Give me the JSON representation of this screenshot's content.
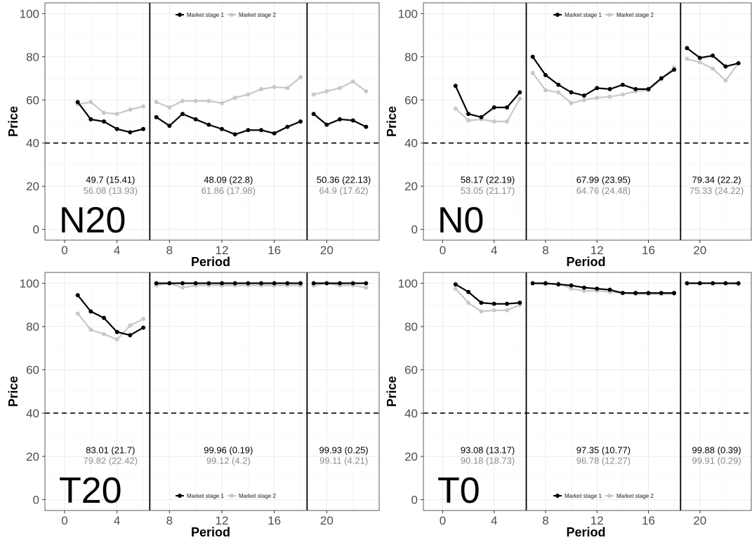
{
  "chart_data": [
    {
      "type": "line",
      "panel_label": "N20",
      "xlabel": "Period",
      "ylabel": "Price",
      "xlim": [
        -1.5,
        24
      ],
      "ylim": [
        -5,
        105
      ],
      "xticks": [
        0,
        4,
        8,
        12,
        16,
        20
      ],
      "yticks": [
        0,
        20,
        40,
        60,
        80,
        100
      ],
      "reference_line_y": 40,
      "dividers_x": [
        6.5,
        18.5
      ],
      "legend_position": "top",
      "series": [
        {
          "name": "Market stage 1",
          "color": "#000000",
          "segments": [
            {
              "x": [
                1,
                2,
                3,
                4,
                5,
                6
              ],
              "y": [
                59,
                51,
                50,
                46.5,
                45,
                46.5
              ]
            },
            {
              "x": [
                7,
                8,
                9,
                10,
                11,
                12,
                13,
                14,
                15,
                16,
                17,
                18
              ],
              "y": [
                52,
                48,
                53.5,
                51,
                48.5,
                46.5,
                44,
                46,
                46,
                44.5,
                47.5,
                50
              ]
            },
            {
              "x": [
                19,
                20,
                21,
                22,
                23
              ],
              "y": [
                53.5,
                48.5,
                51,
                50.5,
                47.5
              ]
            }
          ]
        },
        {
          "name": "Market stage 2",
          "color": "#c8c8c8",
          "segments": [
            {
              "x": [
                1,
                2,
                3,
                4,
                5,
                6
              ],
              "y": [
                58,
                59,
                54,
                53.5,
                55.5,
                57
              ]
            },
            {
              "x": [
                7,
                8,
                9,
                10,
                11,
                12,
                13,
                14,
                15,
                16,
                17,
                18
              ],
              "y": [
                59,
                56.5,
                59.5,
                59.5,
                59.5,
                58.5,
                61,
                62.5,
                65,
                66,
                65.5,
                70.5
              ]
            },
            {
              "x": [
                19,
                20,
                21,
                22,
                23
              ],
              "y": [
                62.5,
                64,
                65.5,
                68.5,
                64
              ]
            }
          ]
        }
      ],
      "annotations": [
        {
          "x": 3.5,
          "stage1": "49.7 (15.41)",
          "stage2": "56.08 (13.93)"
        },
        {
          "x": 12.5,
          "stage1": "48.09 (22.8)",
          "stage2": "61.86 (17.98)"
        },
        {
          "x": 21.3,
          "stage1": "50.36 (22.13)",
          "stage2": "64.9 (17.62)"
        }
      ]
    },
    {
      "type": "line",
      "panel_label": "N0",
      "xlabel": "Period",
      "ylabel": "Price",
      "xlim": [
        -1.5,
        24
      ],
      "ylim": [
        -5,
        105
      ],
      "xticks": [
        0,
        4,
        8,
        12,
        16,
        20
      ],
      "yticks": [
        0,
        20,
        40,
        60,
        80,
        100
      ],
      "reference_line_y": 40,
      "dividers_x": [
        6.5,
        18.5
      ],
      "legend_position": "top",
      "series": [
        {
          "name": "Market stage 1",
          "color": "#000000",
          "segments": [
            {
              "x": [
                1,
                2,
                3,
                4,
                5,
                6
              ],
              "y": [
                66.5,
                53.5,
                52,
                56.5,
                56.5,
                63.5
              ]
            },
            {
              "x": [
                7,
                8,
                9,
                10,
                11,
                12,
                13,
                14,
                15,
                16,
                17,
                18
              ],
              "y": [
                80,
                71.5,
                67,
                63.5,
                62,
                65.5,
                65,
                67,
                65,
                65,
                70,
                74
              ]
            },
            {
              "x": [
                19,
                20,
                21,
                22,
                23
              ],
              "y": [
                84,
                79.5,
                80.5,
                75.5,
                77
              ]
            }
          ]
        },
        {
          "name": "Market stage 2",
          "color": "#c8c8c8",
          "segments": [
            {
              "x": [
                1,
                2,
                3,
                4,
                5,
                6
              ],
              "y": [
                56,
                50.5,
                51,
                50,
                50,
                60.5
              ]
            },
            {
              "x": [
                7,
                8,
                9,
                10,
                11,
                12,
                13,
                14,
                15,
                16,
                17,
                18
              ],
              "y": [
                72.5,
                64.5,
                63.5,
                58.5,
                60,
                61,
                61.5,
                62.5,
                64,
                64.5,
                69.5,
                75
              ]
            },
            {
              "x": [
                19,
                20,
                21,
                22,
                23
              ],
              "y": [
                79,
                77.5,
                74.5,
                69,
                77
              ]
            }
          ]
        }
      ],
      "annotations": [
        {
          "x": 3.5,
          "stage1": "58.17 (22.19)",
          "stage2": "53.05 (21.17)"
        },
        {
          "x": 12.5,
          "stage1": "67.99 (23.95)",
          "stage2": "64.76 (24.48)"
        },
        {
          "x": 21.3,
          "stage1": "79.34 (22.2)",
          "stage2": "75.33 (24.22)"
        }
      ]
    },
    {
      "type": "line",
      "panel_label": "T20",
      "xlabel": "Period",
      "ylabel": "Price",
      "xlim": [
        -1.5,
        24
      ],
      "ylim": [
        -5,
        105
      ],
      "xticks": [
        0,
        4,
        8,
        12,
        16,
        20
      ],
      "yticks": [
        0,
        20,
        40,
        60,
        80,
        100
      ],
      "reference_line_y": 40,
      "dividers_x": [
        6.5,
        18.5
      ],
      "legend_position": "bottom",
      "series": [
        {
          "name": "Market stage 1",
          "color": "#000000",
          "segments": [
            {
              "x": [
                1,
                2,
                3,
                4,
                5,
                6
              ],
              "y": [
                94.5,
                87,
                84,
                77.5,
                76,
                79.5
              ]
            },
            {
              "x": [
                7,
                8,
                9,
                10,
                11,
                12,
                13,
                14,
                15,
                16,
                17,
                18
              ],
              "y": [
                100,
                100,
                100,
                100,
                100,
                100,
                100,
                100,
                100,
                100,
                100,
                100
              ]
            },
            {
              "x": [
                19,
                20,
                21,
                22,
                23
              ],
              "y": [
                100,
                100,
                100,
                100,
                100
              ]
            }
          ]
        },
        {
          "name": "Market stage 2",
          "color": "#c8c8c8",
          "segments": [
            {
              "x": [
                1,
                2,
                3,
                4,
                5,
                6
              ],
              "y": [
                86,
                78.5,
                76.5,
                74,
                80.5,
                83.5
              ]
            },
            {
              "x": [
                7,
                8,
                9,
                10,
                11,
                12,
                13,
                14,
                15,
                16,
                17,
                18
              ],
              "y": [
                99,
                100,
                98,
                99,
                99,
                99,
                99,
                99,
                99,
                99,
                99,
                99
              ]
            },
            {
              "x": [
                19,
                20,
                21,
                22,
                23
              ],
              "y": [
                99,
                100,
                99,
                99,
                98
              ]
            }
          ]
        }
      ],
      "annotations": [
        {
          "x": 3.5,
          "stage1": "83.01 (21.7)",
          "stage2": "79.82 (22.42)"
        },
        {
          "x": 12.5,
          "stage1": "99.96 (0.19)",
          "stage2": "99.12 (4.2)"
        },
        {
          "x": 21.3,
          "stage1": "99.93 (0.25)",
          "stage2": "99.11 (4.21)"
        }
      ]
    },
    {
      "type": "line",
      "panel_label": "T0",
      "xlabel": "Period",
      "ylabel": "Price",
      "xlim": [
        -1.5,
        24
      ],
      "ylim": [
        -5,
        105
      ],
      "xticks": [
        0,
        4,
        8,
        12,
        16,
        20
      ],
      "yticks": [
        0,
        20,
        40,
        60,
        80,
        100
      ],
      "reference_line_y": 40,
      "dividers_x": [
        6.5,
        18.5
      ],
      "legend_position": "bottom",
      "series": [
        {
          "name": "Market stage 1",
          "color": "#000000",
          "segments": [
            {
              "x": [
                1,
                2,
                3,
                4,
                5,
                6
              ],
              "y": [
                99.5,
                96,
                91,
                90.5,
                90.5,
                91
              ]
            },
            {
              "x": [
                7,
                8,
                9,
                10,
                11,
                12,
                13,
                14,
                15,
                16,
                17,
                18
              ],
              "y": [
                100,
                100,
                99.5,
                99,
                98,
                97.5,
                97,
                95.5,
                95.5,
                95.5,
                95.5,
                95.5
              ]
            },
            {
              "x": [
                19,
                20,
                21,
                22,
                23
              ],
              "y": [
                100,
                100,
                100,
                100,
                100
              ]
            }
          ]
        },
        {
          "name": "Market stage 2",
          "color": "#c8c8c8",
          "segments": [
            {
              "x": [
                1,
                2,
                3,
                4,
                5,
                6
              ],
              "y": [
                97.5,
                91,
                87,
                87.5,
                87.5,
                90
              ]
            },
            {
              "x": [
                7,
                8,
                9,
                10,
                11,
                12,
                13,
                14,
                15,
                16,
                17,
                18
              ],
              "y": [
                100,
                99.5,
                100,
                97.5,
                96.5,
                96.5,
                96,
                95.5,
                95,
                95,
                95,
                95
              ]
            },
            {
              "x": [
                19,
                20,
                21,
                22,
                23
              ],
              "y": [
                100,
                100,
                100,
                100,
                99.5
              ]
            }
          ]
        }
      ],
      "annotations": [
        {
          "x": 3.5,
          "stage1": "93.08 (13.17)",
          "stage2": "90.18 (18.73)"
        },
        {
          "x": 12.5,
          "stage1": "97.35 (10.77)",
          "stage2": "96.78 (12.27)"
        },
        {
          "x": 21.3,
          "stage1": "99.88 (0.39)",
          "stage2": "99.91 (0.29)"
        }
      ]
    }
  ]
}
